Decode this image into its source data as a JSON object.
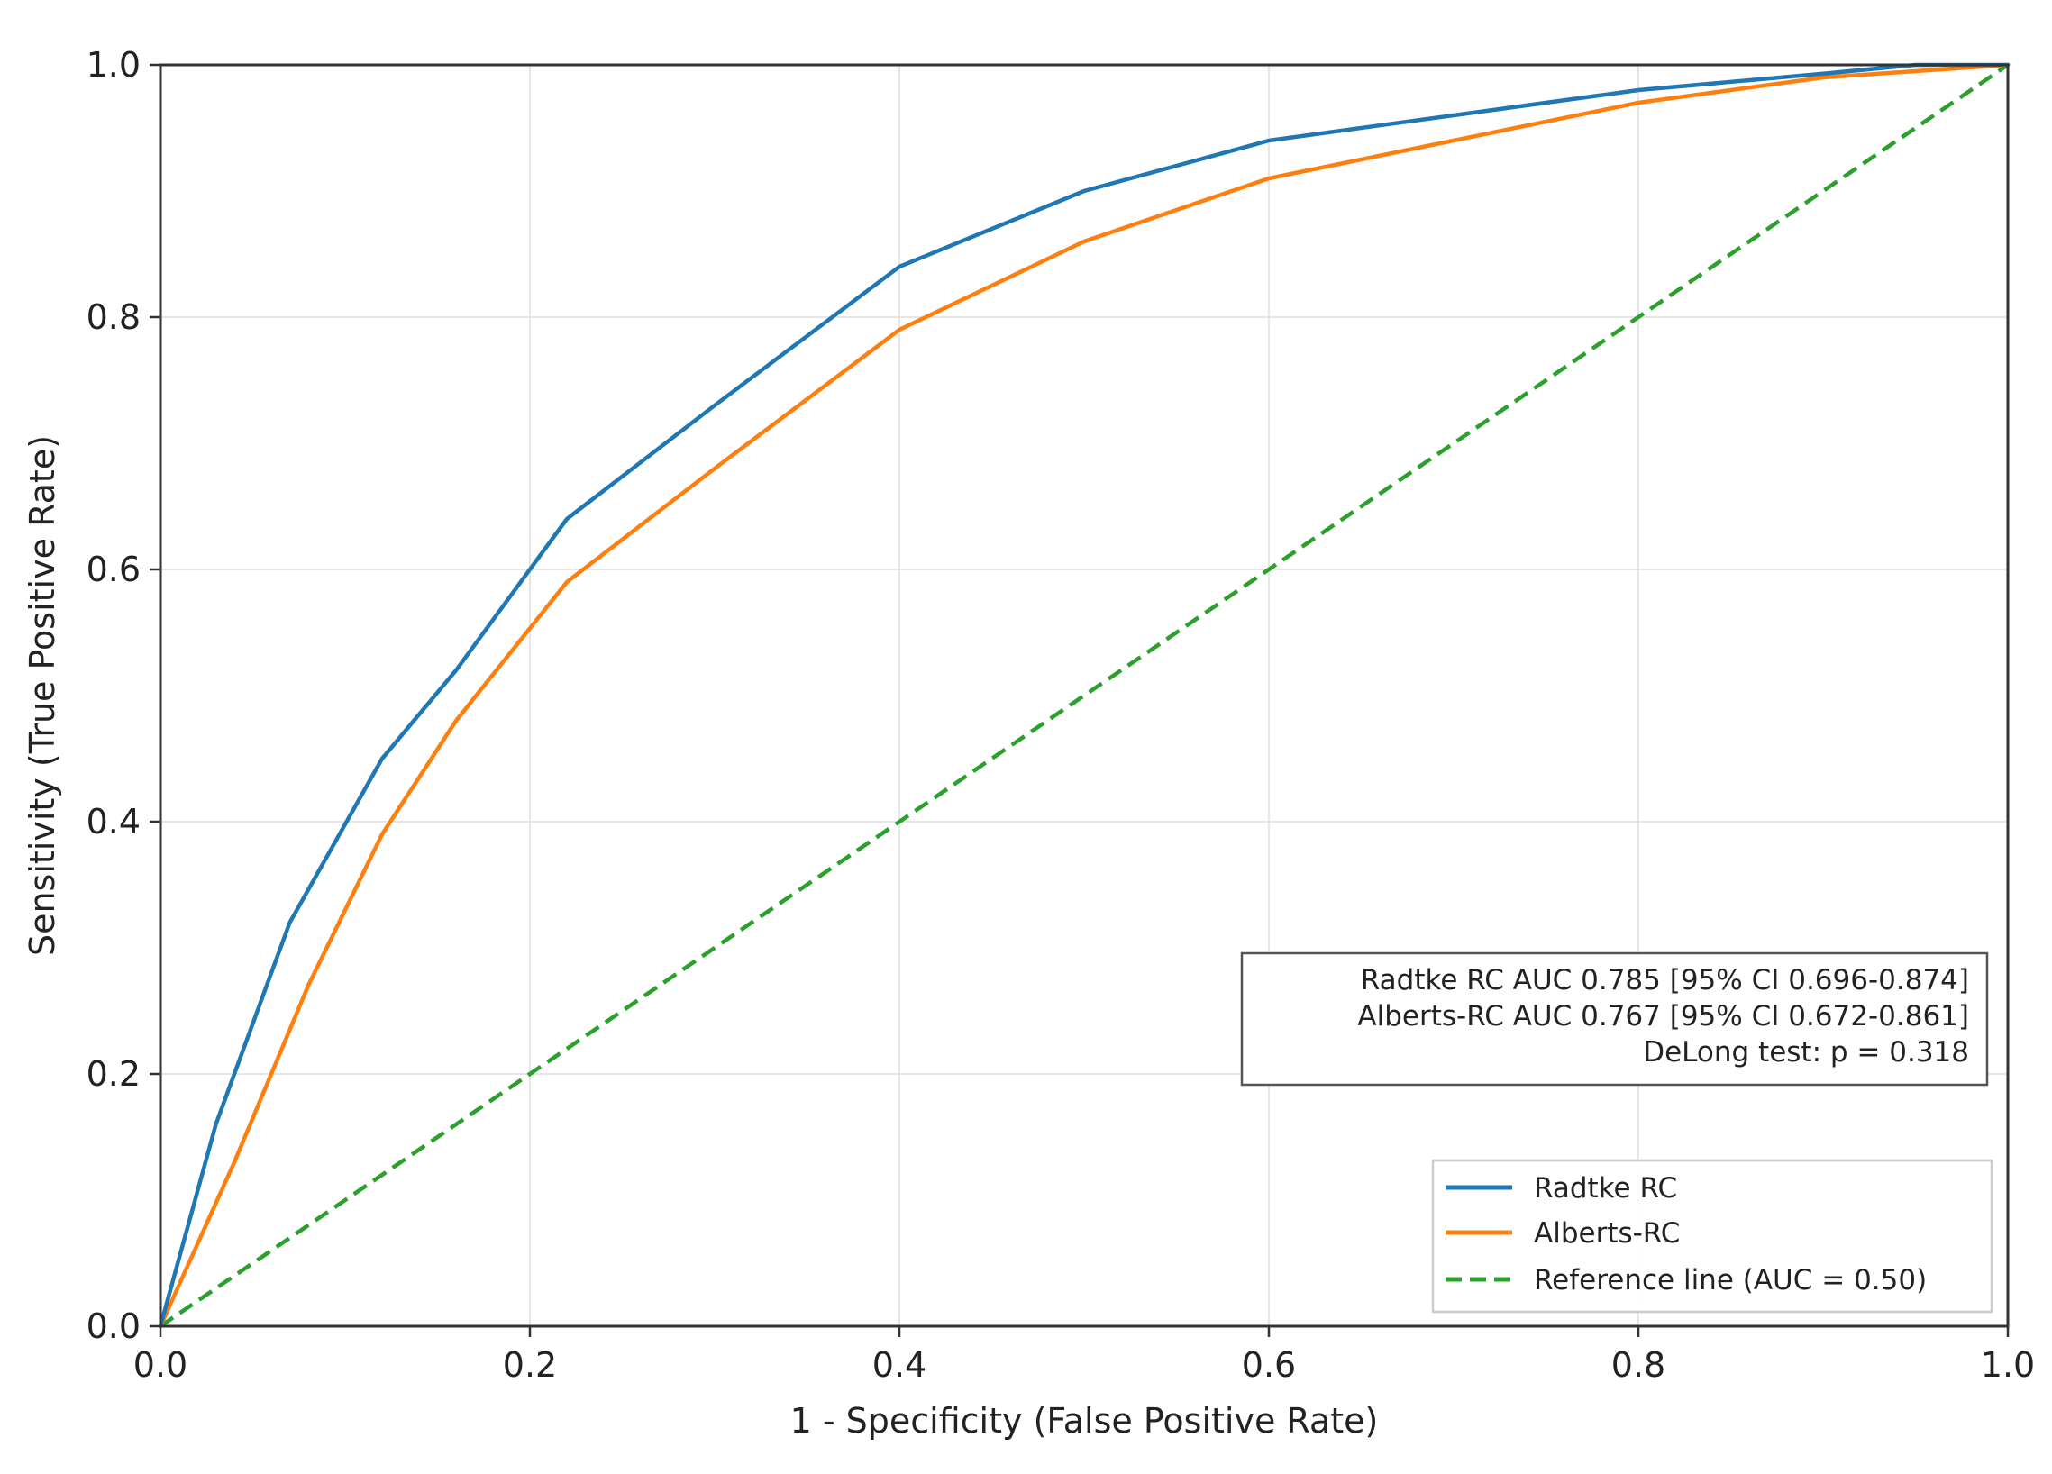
{
  "chart_data": {
    "type": "line",
    "title": "",
    "xlabel": "1 - Specificity (False Positive Rate)",
    "ylabel": "Sensitivity (True Positive Rate)",
    "xlim": [
      0,
      1
    ],
    "ylim": [
      0,
      1
    ],
    "xticks": [
      "0.0",
      "0.2",
      "0.4",
      "0.6",
      "0.8",
      "1.0"
    ],
    "yticks": [
      "0.0",
      "0.2",
      "0.4",
      "0.6",
      "0.8",
      "1.0"
    ],
    "grid": true,
    "legend_position": "bottom-right",
    "series": [
      {
        "name": "Radtke RC",
        "color": "#1f77b4",
        "style": "solid",
        "x": [
          0.0,
          0.03,
          0.07,
          0.12,
          0.16,
          0.22,
          0.3,
          0.4,
          0.5,
          0.6,
          0.7,
          0.8,
          0.9,
          0.95,
          1.0
        ],
        "y": [
          0.0,
          0.16,
          0.32,
          0.45,
          0.52,
          0.64,
          0.73,
          0.84,
          0.9,
          0.94,
          0.96,
          0.98,
          0.993,
          1.0,
          1.0
        ]
      },
      {
        "name": "Alberts-RC",
        "color": "#ff7f0e",
        "style": "solid",
        "x": [
          0.0,
          0.04,
          0.08,
          0.12,
          0.16,
          0.22,
          0.3,
          0.4,
          0.5,
          0.6,
          0.7,
          0.8,
          0.9,
          0.95,
          1.0
        ],
        "y": [
          0.0,
          0.13,
          0.27,
          0.39,
          0.48,
          0.59,
          0.68,
          0.79,
          0.86,
          0.91,
          0.94,
          0.97,
          0.99,
          0.995,
          1.0
        ]
      },
      {
        "name": "Reference line (AUC = 0.50)",
        "color": "#2ca02c",
        "style": "dashed",
        "x": [
          0.0,
          1.0
        ],
        "y": [
          0.0,
          1.0
        ]
      }
    ],
    "annotation": [
      "Radtke RC   AUC 0.785 [95% CI 0.696-0.874]",
      "Alberts-RC  AUC 0.767 [95% CI 0.672-0.861]",
      "DeLong test: p = 0.318"
    ]
  }
}
